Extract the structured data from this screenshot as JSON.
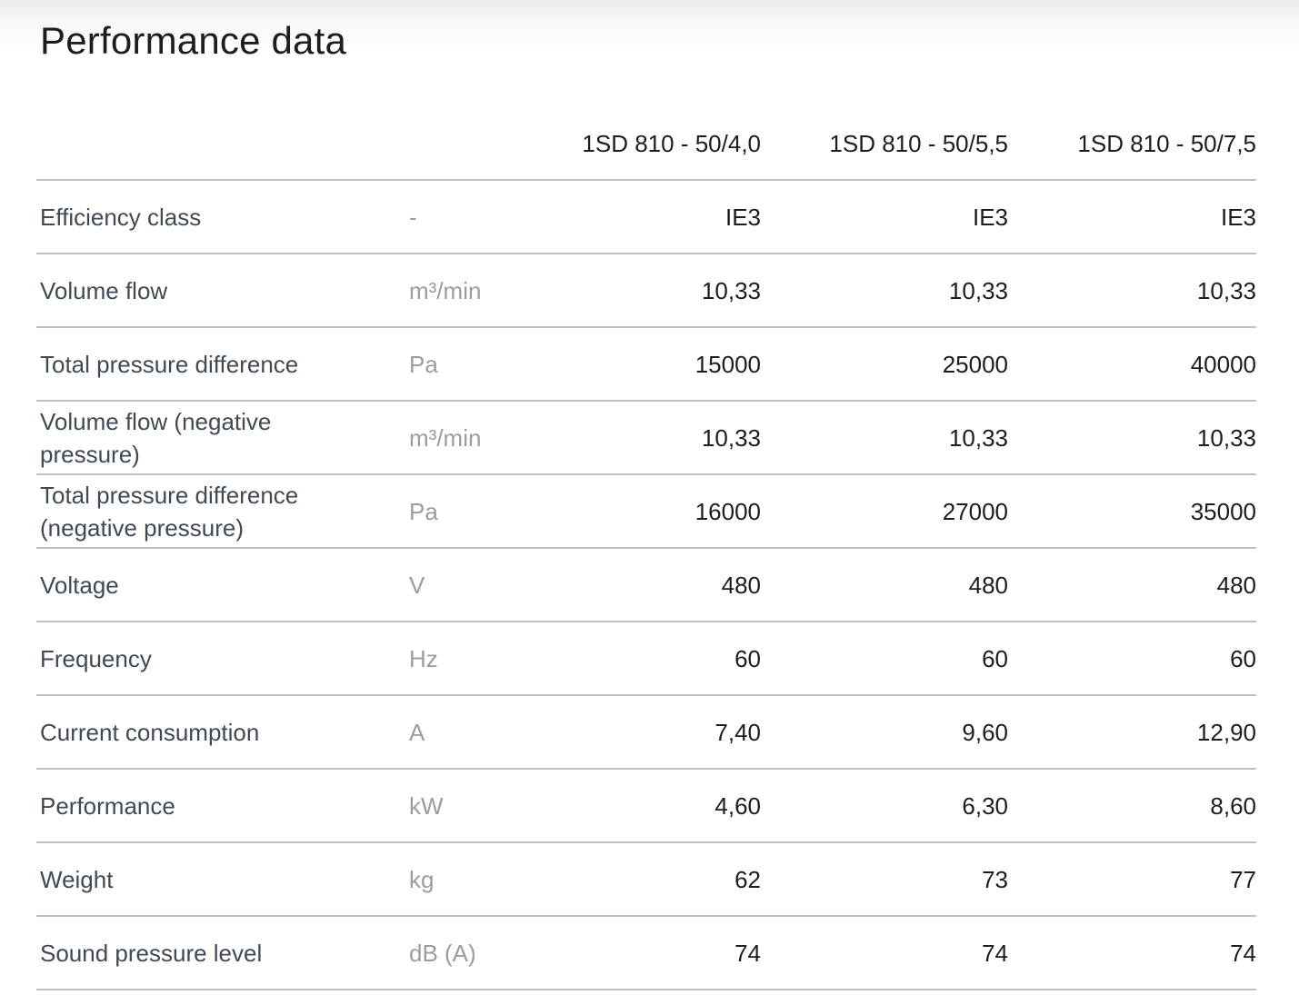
{
  "title": "Performance data",
  "colors": {
    "title_text": "#1d1d1b",
    "label_text": "#3f4a54",
    "unit_text": "#9c9c9c",
    "value_text": "#1d1d1b",
    "divider": "#c0c0c0",
    "top_gradient": "#ececec"
  },
  "table": {
    "columns": [
      "1SD 810 - 50/4,0",
      "1SD 810 - 50/5,5",
      "1SD 810 - 50/7,5"
    ],
    "rows": [
      {
        "label": "Efficiency class",
        "unit": "-",
        "values": [
          "IE3",
          "IE3",
          "IE3"
        ]
      },
      {
        "label": "Volume flow",
        "unit": "m³/min",
        "values": [
          "10,33",
          "10,33",
          "10,33"
        ]
      },
      {
        "label": "Total pressure difference",
        "unit": "Pa",
        "values": [
          "15000",
          "25000",
          "40000"
        ]
      },
      {
        "label": "Volume flow (negative pressure)",
        "unit": "m³/min",
        "values": [
          "10,33",
          "10,33",
          "10,33"
        ]
      },
      {
        "label": "Total pressure difference (negative pressure)",
        "unit": "Pa",
        "values": [
          "16000",
          "27000",
          "35000"
        ]
      },
      {
        "label": "Voltage",
        "unit": "V",
        "values": [
          "480",
          "480",
          "480"
        ]
      },
      {
        "label": "Frequency",
        "unit": "Hz",
        "values": [
          "60",
          "60",
          "60"
        ]
      },
      {
        "label": "Current consumption",
        "unit": "A",
        "values": [
          "7,40",
          "9,60",
          "12,90"
        ]
      },
      {
        "label": "Performance",
        "unit": "kW",
        "values": [
          "4,60",
          "6,30",
          "8,60"
        ]
      },
      {
        "label": "Weight",
        "unit": "kg",
        "values": [
          "62",
          "73",
          "77"
        ]
      },
      {
        "label": "Sound pressure level",
        "unit": "dB (A)",
        "values": [
          "74",
          "74",
          "74"
        ]
      }
    ]
  }
}
